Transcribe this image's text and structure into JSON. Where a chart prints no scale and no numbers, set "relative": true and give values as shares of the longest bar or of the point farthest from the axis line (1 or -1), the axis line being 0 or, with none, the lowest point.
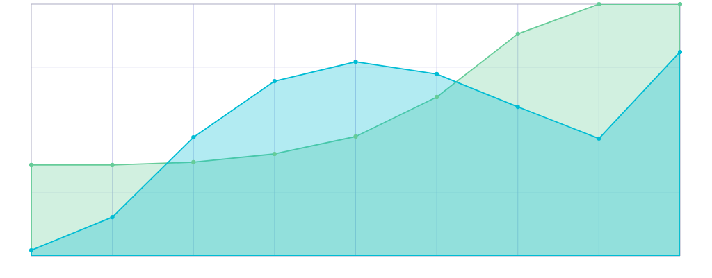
{
  "chart_data": {
    "type": "area",
    "relative": true,
    "grid": true,
    "marker": "circle",
    "line_style": "solid",
    "categories": [
      null,
      null,
      null,
      null,
      null,
      null,
      null,
      null,
      null
    ],
    "series": [
      {
        "color": "#66cc99",
        "values": [
          0.361,
          0.361,
          0.372,
          0.405,
          0.474,
          0.631,
          0.882,
          1.0,
          1.0
        ]
      },
      {
        "color": "#00bcd4",
        "values": [
          0.022,
          0.154,
          0.471,
          0.694,
          0.771,
          0.722,
          0.592,
          0.466,
          0.81
        ]
      }
    ]
  }
}
